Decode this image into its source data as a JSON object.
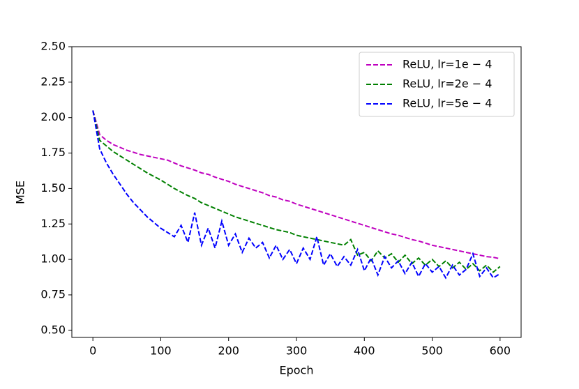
{
  "chart_data": {
    "type": "line",
    "xlabel": "Epoch",
    "ylabel": "MSE",
    "x": [
      0,
      10,
      20,
      30,
      40,
      50,
      60,
      70,
      80,
      90,
      100,
      110,
      120,
      130,
      140,
      150,
      160,
      170,
      180,
      190,
      200,
      210,
      220,
      230,
      240,
      250,
      260,
      270,
      280,
      290,
      300,
      310,
      320,
      330,
      340,
      350,
      360,
      370,
      380,
      390,
      400,
      410,
      420,
      430,
      440,
      450,
      460,
      470,
      480,
      490,
      500,
      510,
      520,
      530,
      540,
      550,
      560,
      570,
      580,
      590,
      600
    ],
    "series": [
      {
        "name": "ReLU, lr=1e − 4",
        "color": "#bf00bf",
        "values": [
          2.05,
          1.88,
          1.84,
          1.81,
          1.79,
          1.77,
          1.755,
          1.74,
          1.73,
          1.72,
          1.71,
          1.7,
          1.68,
          1.66,
          1.645,
          1.63,
          1.61,
          1.6,
          1.58,
          1.565,
          1.55,
          1.53,
          1.515,
          1.5,
          1.485,
          1.47,
          1.45,
          1.44,
          1.42,
          1.41,
          1.39,
          1.375,
          1.36,
          1.345,
          1.33,
          1.315,
          1.3,
          1.285,
          1.27,
          1.255,
          1.24,
          1.225,
          1.21,
          1.195,
          1.18,
          1.17,
          1.155,
          1.14,
          1.13,
          1.115,
          1.1,
          1.09,
          1.08,
          1.07,
          1.06,
          1.05,
          1.04,
          1.03,
          1.02,
          1.015,
          1.005
        ]
      },
      {
        "name": "ReLU, lr=2e − 4",
        "color": "#008000",
        "values": [
          2.05,
          1.84,
          1.8,
          1.76,
          1.73,
          1.7,
          1.67,
          1.64,
          1.61,
          1.585,
          1.56,
          1.53,
          1.5,
          1.475,
          1.45,
          1.43,
          1.4,
          1.38,
          1.36,
          1.34,
          1.32,
          1.3,
          1.285,
          1.27,
          1.255,
          1.24,
          1.225,
          1.21,
          1.2,
          1.19,
          1.17,
          1.16,
          1.15,
          1.14,
          1.13,
          1.12,
          1.11,
          1.1,
          1.14,
          1.03,
          1.05,
          0.99,
          1.06,
          1.01,
          1.04,
          0.98,
          1.03,
          0.97,
          1.01,
          0.96,
          1.0,
          0.95,
          0.99,
          0.94,
          0.98,
          0.93,
          0.97,
          0.92,
          0.96,
          0.91,
          0.95
        ]
      },
      {
        "name": "ReLU, lr=5e − 4",
        "color": "#0000ff",
        "values": [
          2.05,
          1.78,
          1.68,
          1.6,
          1.53,
          1.46,
          1.4,
          1.35,
          1.3,
          1.26,
          1.22,
          1.19,
          1.16,
          1.24,
          1.12,
          1.33,
          1.1,
          1.22,
          1.08,
          1.27,
          1.1,
          1.18,
          1.05,
          1.15,
          1.08,
          1.12,
          1.01,
          1.1,
          1.0,
          1.07,
          0.97,
          1.08,
          1.0,
          1.16,
          0.96,
          1.04,
          0.95,
          1.02,
          0.96,
          1.07,
          0.92,
          1.01,
          0.89,
          1.02,
          0.94,
          0.99,
          0.9,
          0.98,
          0.88,
          0.97,
          0.91,
          0.95,
          0.87,
          0.96,
          0.89,
          0.93,
          1.04,
          0.88,
          0.94,
          0.87,
          0.9
        ]
      }
    ],
    "xlim": [
      -31,
      631
    ],
    "ylim": [
      0.45,
      2.5
    ],
    "xticks": [
      0,
      100,
      200,
      300,
      400,
      500,
      600
    ],
    "yticks": [
      {
        "value": 0.5,
        "label": "0.50"
      },
      0.75,
      {
        "value": 1,
        "label": "1.00"
      },
      1.25,
      {
        "value": 1.5,
        "label": "1.50"
      },
      1.75,
      {
        "value": 2,
        "label": "2.00"
      },
      2.25,
      {
        "value": 2.5,
        "label": "2.50"
      }
    ],
    "legend": "upper right",
    "dashed": true
  }
}
